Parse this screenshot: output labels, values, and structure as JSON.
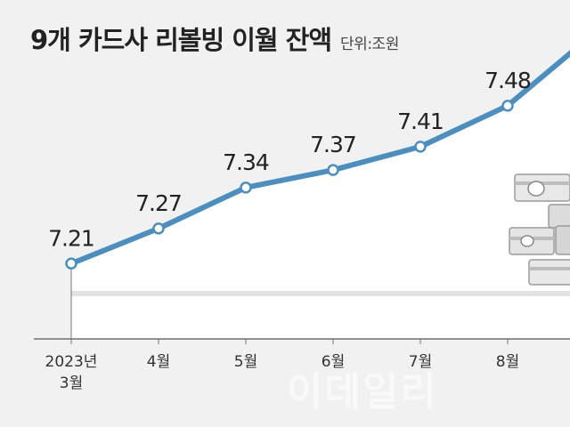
{
  "header": {
    "title": "9개 카드사 리볼빙 이월 잔액",
    "unit": "단위:조원"
  },
  "watermark": "이데일리",
  "colors": {
    "line": "#4a8fbf",
    "marker_fill": "#ffffff",
    "background": "#f1f1f1",
    "area": "#ffffff"
  },
  "chart_data": {
    "type": "line",
    "title": "9개 카드사 리볼빙 이월 잔액",
    "unit": "조원",
    "categories": [
      "2023년\n3월",
      "4월",
      "5월",
      "6월",
      "7월",
      "8월"
    ],
    "values": [
      7.21,
      7.27,
      7.34,
      7.37,
      7.41,
      7.48
    ],
    "value_labels": [
      "7.21",
      "7.27",
      "7.34",
      "7.37",
      "7.41",
      "7.48"
    ],
    "ylim": [
      6.9,
      7.6
    ],
    "grid": false,
    "legend": "none",
    "continues_right": true
  }
}
